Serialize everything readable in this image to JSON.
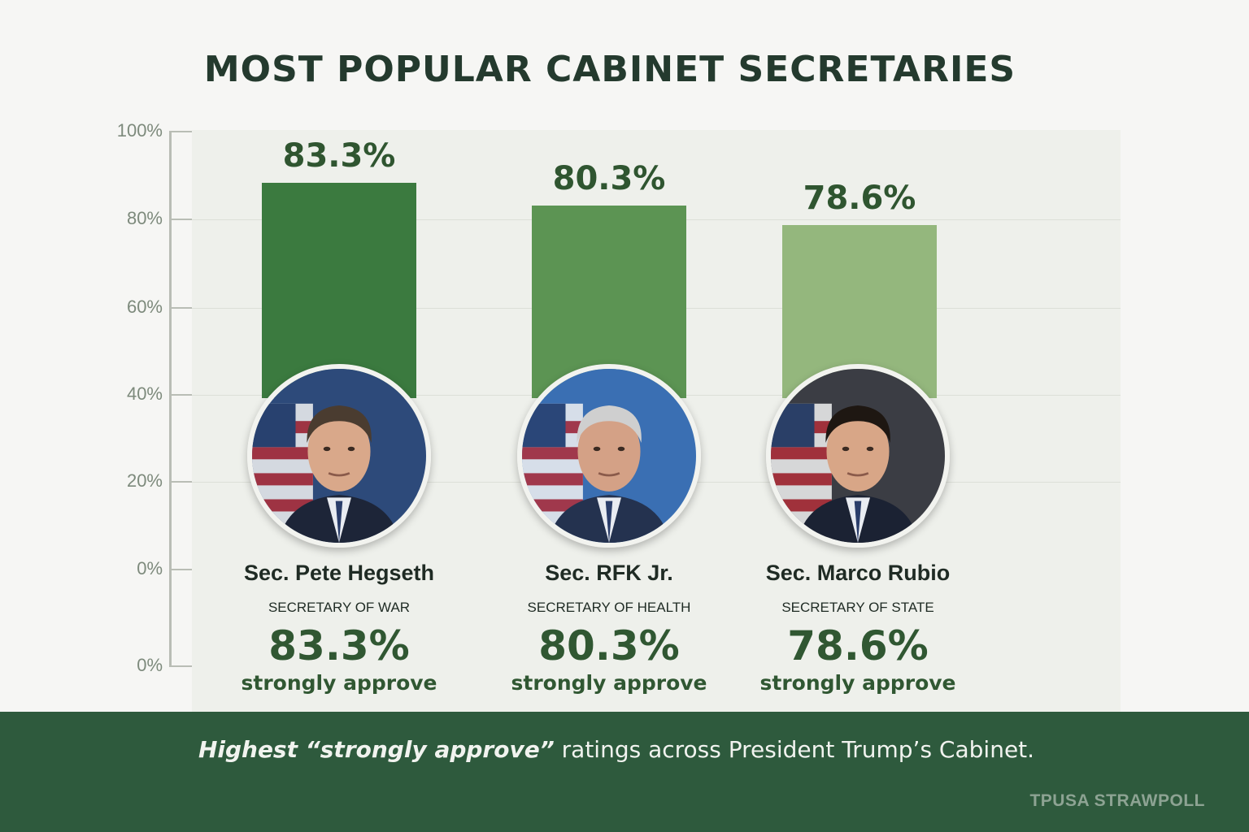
{
  "title": "MOST POPULAR CABINET SECRETARIES",
  "colors": {
    "bar_1": "#3b7a3f",
    "bar_2": "#5c9453",
    "bar_3": "#94b77d",
    "text_green": "#305732",
    "footer_bg": "#2e5a3d"
  },
  "chart_data": {
    "type": "bar",
    "title": "MOST POPULAR CABINET SECRETARIES",
    "categories": [
      "Sec. Pete Hegseth",
      "Sec. RFK Jr.",
      "Sec. Marco Rubio"
    ],
    "values": [
      83.3,
      80.3,
      78.6
    ],
    "value_labels": [
      "83.3%",
      "80.3%",
      "78.6%"
    ],
    "ylabel": "",
    "xlabel": "",
    "ylim": [
      0,
      100
    ],
    "y_ticks": [
      "100%",
      "80%",
      "60%",
      "40%",
      "20%",
      "0%",
      "0%"
    ],
    "grid": true,
    "legend": "none"
  },
  "secretaries": [
    {
      "name": "Sec. Pete Hegseth",
      "role": "SECRETARY OF WAR",
      "pct": "83.3%",
      "approve": "strongly approve",
      "photo_icon": "portrait-hegseth"
    },
    {
      "name": "Sec. RFK Jr.",
      "role": "SECRETARY OF HEALTH",
      "pct": "80.3%",
      "approve": "strongly approve",
      "photo_icon": "portrait-rfk"
    },
    {
      "name": "Sec. Marco Rubio",
      "role": "SECRETARY OF STATE",
      "pct": "78.6%",
      "approve": "strongly approve",
      "photo_icon": "portrait-rubio"
    }
  ],
  "footer": {
    "bold_part": "Highest “strongly approve”",
    "rest": " ratings across President Trump’s Cabinet.",
    "brand": "TPUSA STRAWPOLL"
  }
}
